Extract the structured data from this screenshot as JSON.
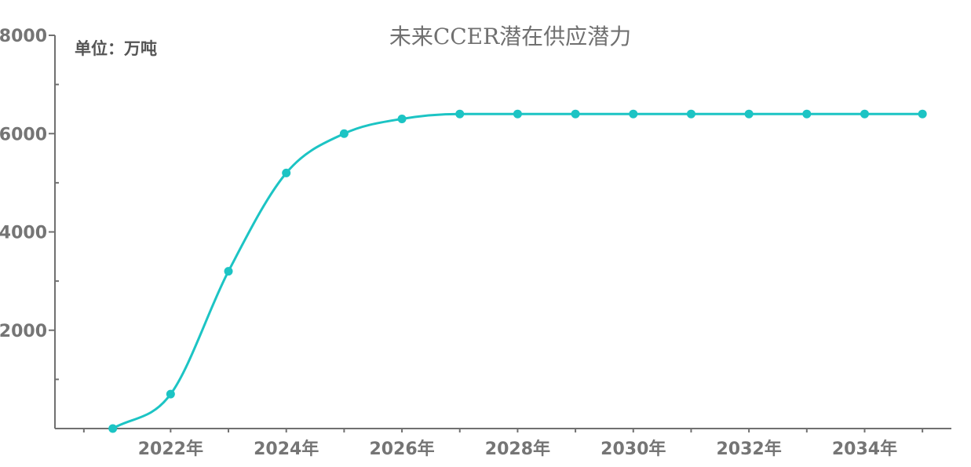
{
  "chart_data": {
    "type": "line",
    "title": "未来CCER潜在供应潜力",
    "unit_label": "单位：万吨",
    "x": [
      2021,
      2022,
      2023,
      2024,
      2025,
      2026,
      2027,
      2028,
      2029,
      2030,
      2031,
      2032,
      2033,
      2034,
      2035
    ],
    "values": [
      0,
      700,
      3200,
      5200,
      6000,
      6300,
      6400,
      6400,
      6400,
      6400,
      6400,
      6400,
      6400,
      6400,
      6400
    ],
    "x_tick_labels": [
      {
        "x": 2022,
        "label": "2022年"
      },
      {
        "x": 2024,
        "label": "2024年"
      },
      {
        "x": 2026,
        "label": "2026年"
      },
      {
        "x": 2028,
        "label": "2028年"
      },
      {
        "x": 2030,
        "label": "2030年"
      },
      {
        "x": 2032,
        "label": "2032年"
      },
      {
        "x": 2034,
        "label": "2034年"
      }
    ],
    "y_ticks": [
      2000,
      4000,
      6000,
      8000
    ],
    "ylim": [
      0,
      8000
    ],
    "xlim": [
      2020,
      2035.5
    ],
    "series_color": "#1cc4c4",
    "axis_color": "#707070",
    "smooth": true,
    "grid": false
  }
}
